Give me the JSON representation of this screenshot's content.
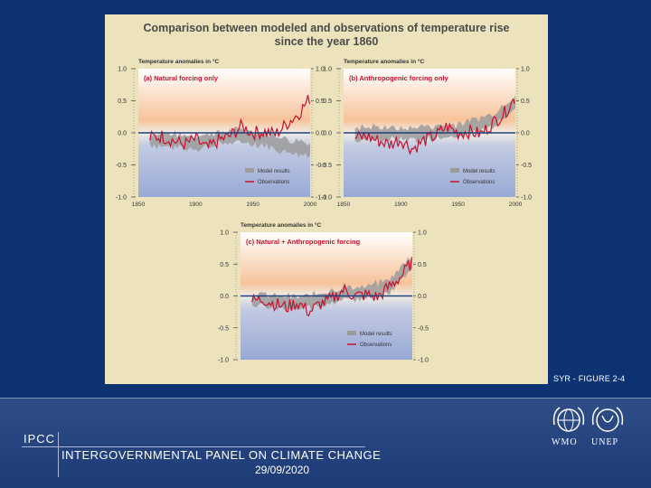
{
  "slide": {
    "figure_label": "SYR - FIGURE 2-4",
    "footer": {
      "org_short": "IPCC",
      "org_full": "INTERGOVERNMENTAL PANEL ON CLIMATE CHANGE",
      "date": "29/09/2020",
      "logos": [
        "WMO",
        "UNEP"
      ]
    },
    "colors": {
      "background": "#0d3373",
      "panel": "#ece3bd",
      "model": "#9b9b9b",
      "observations": "#c8102e",
      "baseline": "#1f3f7a"
    }
  },
  "chart_data": {
    "title_line1": "Comparison between modeled and observations of temperature rise",
    "title_line2": "since the year 1860",
    "ylabel": "Temperature anomalies in °C",
    "ylim": [
      -1.0,
      1.0
    ],
    "yticks": [
      "1.0",
      "0.5",
      "0.0",
      "-0.5",
      "-1.0"
    ],
    "xticks": [
      "1850",
      "1900",
      "1950",
      "2000"
    ],
    "xlim": [
      1850,
      2000
    ],
    "legend": [
      "Model results",
      "Observations"
    ],
    "panels": [
      {
        "title": "(a) Natural forcing only",
        "show_xticks": true,
        "model_mean": [
          [
            1860,
            -0.1
          ],
          [
            1880,
            -0.12
          ],
          [
            1900,
            -0.15
          ],
          [
            1920,
            -0.08
          ],
          [
            1940,
            -0.05
          ],
          [
            1960,
            -0.1
          ],
          [
            1980,
            -0.2
          ],
          [
            2000,
            -0.25
          ]
        ],
        "model_spread": 0.2
      },
      {
        "title": "(b) Anthropogenic forcing only",
        "show_xticks": true,
        "model_mean": [
          [
            1860,
            -0.02
          ],
          [
            1880,
            0.0
          ],
          [
            1900,
            -0.02
          ],
          [
            1920,
            0.0
          ],
          [
            1940,
            0.02
          ],
          [
            1960,
            0.08
          ],
          [
            1980,
            0.2
          ],
          [
            2000,
            0.5
          ]
        ],
        "model_spread": 0.2
      },
      {
        "title": "(c) Natural + Anthropogenic forcing",
        "show_xticks": false,
        "model_mean": [
          [
            1860,
            -0.05
          ],
          [
            1880,
            -0.1
          ],
          [
            1900,
            -0.12
          ],
          [
            1920,
            -0.05
          ],
          [
            1940,
            0.05
          ],
          [
            1960,
            0.05
          ],
          [
            1980,
            0.15
          ],
          [
            2000,
            0.55
          ]
        ],
        "model_spread": 0.2
      }
    ],
    "observations": [
      [
        1860,
        -0.08
      ],
      [
        1870,
        -0.05
      ],
      [
        1880,
        -0.12
      ],
      [
        1890,
        -0.18
      ],
      [
        1900,
        -0.1
      ],
      [
        1910,
        -0.25
      ],
      [
        1920,
        -0.12
      ],
      [
        1930,
        -0.05
      ],
      [
        1940,
        0.1
      ],
      [
        1950,
        0.0
      ],
      [
        1960,
        0.02
      ],
      [
        1970,
        -0.02
      ],
      [
        1980,
        0.15
      ],
      [
        1990,
        0.3
      ],
      [
        2000,
        0.55
      ]
    ]
  }
}
